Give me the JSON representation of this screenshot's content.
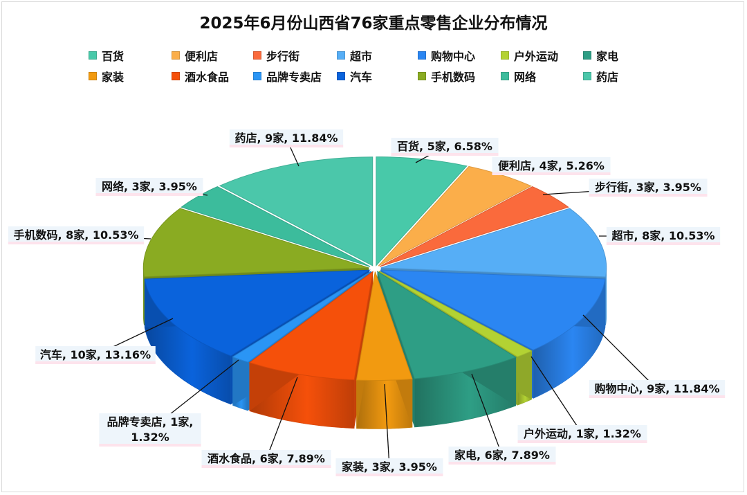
{
  "chart_data": {
    "type": "pie",
    "title": "2025年6月份山西省76家重点零售企业分布情况",
    "slices": [
      {
        "name": "百货",
        "count": 5,
        "percent": 6.58,
        "color": "#48c9a9",
        "label": "百货, 5家, 6.58%"
      },
      {
        "name": "便利店",
        "count": 4,
        "percent": 5.26,
        "color": "#fbae4a",
        "label": "便利店, 4家, 5.26%"
      },
      {
        "name": "步行街",
        "count": 3,
        "percent": 3.95,
        "color": "#fa6a3c",
        "label": "步行街, 3家, 3.95%"
      },
      {
        "name": "超市",
        "count": 8,
        "percent": 10.53,
        "color": "#56aef6",
        "label": "超市, 8家, 10.53%"
      },
      {
        "name": "购物中心",
        "count": 9,
        "percent": 11.84,
        "color": "#2b86f2",
        "label": "购物中心, 9家, 11.84%"
      },
      {
        "name": "户外运动",
        "count": 1,
        "percent": 1.32,
        "color": "#b3d233",
        "label": "户外运动, 1家, 1.32%"
      },
      {
        "name": "家电",
        "count": 6,
        "percent": 7.89,
        "color": "#2e9e85",
        "label": "家电, 6家, 7.89%"
      },
      {
        "name": "家装",
        "count": 3,
        "percent": 3.95,
        "color": "#f29a10",
        "label": "家装, 3家, 3.95%"
      },
      {
        "name": "酒水食品",
        "count": 6,
        "percent": 7.89,
        "color": "#f5500a",
        "label": "酒水食品, 6家, 7.89%"
      },
      {
        "name": "品牌专卖店",
        "count": 1,
        "percent": 1.32,
        "color": "#2a95f5",
        "label": "品牌专卖店, 1家,\n1.32%"
      },
      {
        "name": "汽车",
        "count": 10,
        "percent": 13.16,
        "color": "#0a63dc",
        "label": "汽车, 10家, 13.16%"
      },
      {
        "name": "手机数码",
        "count": 8,
        "percent": 10.53,
        "color": "#8aab22",
        "label": "手机数码, 8家, 10.53%"
      },
      {
        "name": "网络",
        "count": 3,
        "percent": 3.95,
        "color": "#3cbc9c",
        "label": "网络, 3家, 3.95%"
      },
      {
        "name": "药店",
        "count": 9,
        "percent": 11.84,
        "color": "#4bc7aa",
        "label": "药店, 9家, 11.84%"
      }
    ],
    "legend": "top"
  }
}
